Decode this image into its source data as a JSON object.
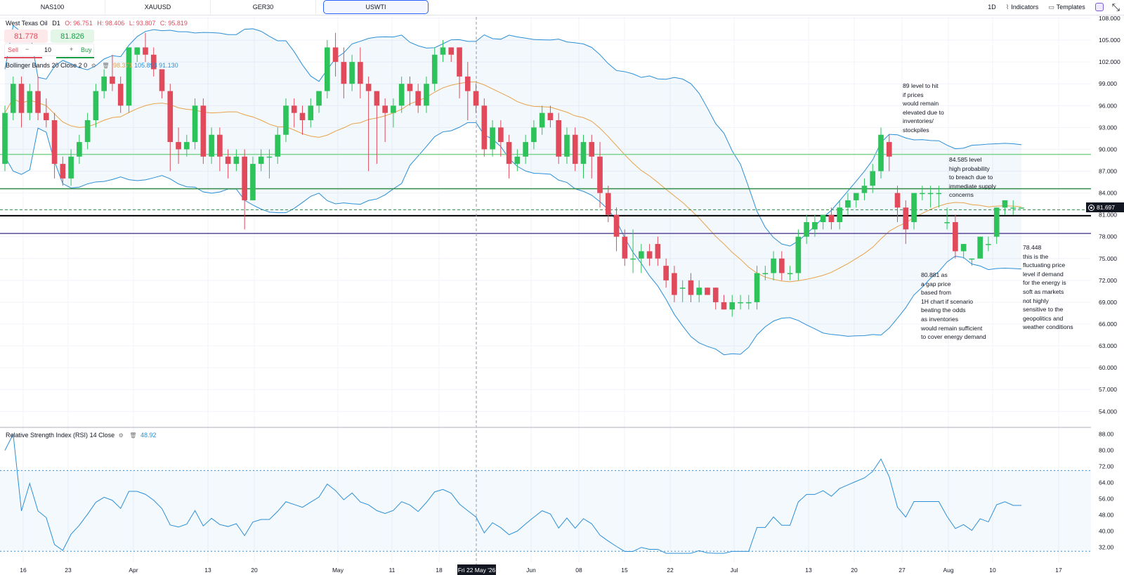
{
  "tabs": [
    {
      "label": "NAS100",
      "active": false
    },
    {
      "label": "XAUUSD",
      "active": false
    },
    {
      "label": "GER30",
      "active": false
    },
    {
      "label": "USWTI",
      "active": true
    }
  ],
  "toolbar": {
    "interval": "1D",
    "indicators_label": "Indicators",
    "templates_label": "Templates"
  },
  "legend": {
    "symbol": "West Texas Oil",
    "timeframe": "D1",
    "open": "O: 96.751",
    "high": "H: 98.406",
    "low": "L: 93.807",
    "close": "C: 95.819"
  },
  "trade": {
    "sell_price": "81.778",
    "buy_price": "81.826",
    "sell_label": "Sell",
    "buy_label": "Buy",
    "quantity": "10",
    "minus": "−",
    "plus": "+"
  },
  "bollinger": {
    "name": "Bollinger Bands",
    "length": "20",
    "source": "Close",
    "mult": "2",
    "offset": "0",
    "basis": "98.371",
    "upper": "105.898",
    "lower": "91.130"
  },
  "rsi_legend": {
    "name": "Relative Strength Index (RSI)",
    "length": "14",
    "source": "Close",
    "value": "48.92"
  },
  "annotations": [
    {
      "id": "note-89",
      "text": "89 level to hit\nif prices\nwould remain\nelevated due to\ninventories/\nstockpiles"
    },
    {
      "id": "note-84",
      "text": "84.585 level\nhigh probability\nto breach due to\nimmediate supply\nconcerns"
    },
    {
      "id": "note-80",
      "text": "80.881 as\na gap price\nbased from\n1H chart if scenario\nbeating the odds\nas inventories\nwould remain sufficient\nto cover energy demand"
    },
    {
      "id": "note-78",
      "text": "78.448\nthis is the\nfluctuating price\nlevel if demand\nfor the energy is\nsoft as markets\nnot highly\nsensitive to the\ngeopolitics and\nweather conditions"
    }
  ],
  "price_tag": "81.697",
  "crosshair_date": "Fri 22 May '26",
  "colors": {
    "up": "#2ec25a",
    "down": "#e04a5a",
    "band": "#2b8fd6",
    "basis": "#e8a24a",
    "level_green": "#7ad38c",
    "level_dark_green": "#2f8a48",
    "level_black": "#000000",
    "level_purple": "#5b4a9a"
  },
  "chart_data": {
    "type": "candlestick",
    "symbol": "West Texas Oil",
    "price_axis": {
      "range": [
        52,
        108
      ],
      "ticks": [
        "108.000",
        "105.000",
        "102.000",
        "99.000",
        "96.000",
        "93.000",
        "90.000",
        "87.000",
        "84.000",
        "81.000",
        "78.000",
        "75.000",
        "72.000",
        "69.000",
        "66.000",
        "63.000",
        "60.000",
        "57.000",
        "54.000"
      ]
    },
    "time_axis": {
      "labels": [
        "16",
        "23",
        "Apr",
        "13",
        "20",
        "May",
        "11",
        "18",
        "Jun",
        "08",
        "15",
        "22",
        "Jul",
        "13",
        "20",
        "27",
        "Aug",
        "10",
        "17"
      ]
    },
    "horizontal_levels": [
      89.3,
      84.585,
      80.881,
      78.448
    ],
    "current_price": 81.697,
    "candles": [
      [
        88,
        95,
        87,
        96
      ],
      [
        95,
        99,
        94,
        100
      ],
      [
        99,
        95,
        93,
        100
      ],
      [
        95,
        98,
        94,
        99
      ],
      [
        98,
        95,
        94,
        100
      ],
      [
        95,
        94,
        93,
        97
      ],
      [
        94,
        88,
        86,
        95
      ],
      [
        88,
        86,
        85,
        89
      ],
      [
        86,
        89,
        85,
        90
      ],
      [
        89,
        91,
        88,
        92
      ],
      [
        91,
        94,
        90,
        95
      ],
      [
        94,
        98,
        93,
        99
      ],
      [
        98,
        100,
        97,
        101
      ],
      [
        100,
        99,
        98,
        103
      ],
      [
        99,
        96,
        95,
        100
      ],
      [
        96,
        104,
        95,
        104
      ],
      [
        103,
        104,
        102,
        104
      ],
      [
        104,
        103,
        102,
        106
      ],
      [
        103,
        101,
        100,
        104
      ],
      [
        101,
        98,
        97,
        101
      ],
      [
        98,
        91,
        87,
        99
      ],
      [
        91,
        90,
        88,
        93
      ],
      [
        90,
        91,
        89,
        92
      ],
      [
        91,
        96,
        90,
        97
      ],
      [
        96,
        89,
        88,
        97
      ],
      [
        89,
        92,
        88,
        93
      ],
      [
        92,
        89,
        87,
        93
      ],
      [
        89,
        88,
        86,
        90
      ],
      [
        88,
        89,
        87,
        90
      ],
      [
        89,
        83,
        79,
        90
      ],
      [
        83,
        88,
        83,
        89
      ],
      [
        88,
        89,
        87,
        90
      ],
      [
        89,
        89,
        86,
        90
      ],
      [
        89,
        92,
        88,
        93
      ],
      [
        92,
        96,
        91,
        97
      ],
      [
        96,
        95,
        93,
        97
      ],
      [
        95,
        94,
        92,
        96
      ],
      [
        94,
        96,
        93,
        97
      ],
      [
        96,
        98,
        95,
        98
      ],
      [
        98,
        104,
        97,
        105
      ],
      [
        104,
        102,
        100,
        106
      ],
      [
        102,
        99,
        97,
        104
      ],
      [
        99,
        102,
        98,
        103
      ],
      [
        102,
        99,
        97,
        104
      ],
      [
        99,
        98,
        87,
        100
      ],
      [
        98,
        96,
        88,
        98
      ],
      [
        96,
        95,
        91,
        97
      ],
      [
        95,
        96,
        93,
        97
      ],
      [
        96,
        99,
        95,
        100
      ],
      [
        99,
        98,
        96,
        100
      ],
      [
        98,
        96,
        95,
        99
      ],
      [
        96,
        99,
        95,
        100
      ],
      [
        99,
        103,
        98,
        104
      ],
      [
        103,
        104,
        102,
        105
      ],
      [
        104,
        103,
        102,
        104
      ],
      [
        104,
        100,
        97,
        104
      ],
      [
        100,
        98,
        94,
        102
      ],
      [
        98,
        96,
        95,
        99
      ],
      [
        96,
        90,
        89,
        97
      ],
      [
        90,
        93,
        89,
        94
      ],
      [
        93,
        91,
        89,
        94
      ],
      [
        91,
        88,
        86,
        92
      ],
      [
        88,
        89,
        87,
        90
      ],
      [
        89,
        91,
        88,
        92
      ],
      [
        91,
        93,
        90,
        94
      ],
      [
        93,
        95,
        92,
        96
      ],
      [
        95,
        94,
        93,
        96
      ],
      [
        94,
        89,
        88,
        95
      ],
      [
        89,
        92,
        88,
        93
      ],
      [
        92,
        88,
        87,
        93
      ],
      [
        88,
        91,
        86,
        92
      ],
      [
        91,
        89,
        86,
        92
      ],
      [
        89,
        84,
        82,
        91
      ],
      [
        84,
        81,
        80,
        85
      ],
      [
        81,
        78,
        76,
        82
      ],
      [
        78,
        75,
        74,
        79
      ],
      [
        75,
        75,
        73,
        79
      ],
      [
        75,
        76,
        73,
        77
      ],
      [
        76,
        75,
        74,
        77
      ],
      [
        77,
        75,
        74,
        78
      ],
      [
        74,
        72,
        71,
        75
      ],
      [
        73,
        70,
        69,
        74
      ],
      [
        71,
        71,
        69,
        72
      ],
      [
        72,
        70,
        69,
        73
      ],
      [
        70,
        71,
        69,
        72
      ],
      [
        71,
        70,
        70,
        71
      ],
      [
        71,
        69,
        68,
        71
      ],
      [
        69,
        68,
        68,
        70
      ],
      [
        68,
        69,
        67,
        70
      ],
      [
        69,
        69,
        68,
        70
      ],
      [
        69,
        69,
        68,
        70
      ],
      [
        69,
        73,
        68,
        74
      ],
      [
        73,
        73,
        72,
        74
      ],
      [
        73,
        75,
        72,
        76
      ],
      [
        75,
        73,
        72,
        76
      ],
      [
        73,
        73,
        72,
        74
      ],
      [
        73,
        78,
        72,
        79
      ],
      [
        78,
        80,
        77,
        81
      ],
      [
        79,
        80,
        78,
        81
      ],
      [
        80,
        81,
        79,
        81
      ],
      [
        81,
        80,
        79,
        82
      ],
      [
        80,
        82,
        79,
        83
      ],
      [
        82,
        83,
        81,
        84
      ],
      [
        83,
        84,
        82,
        84
      ],
      [
        84,
        85,
        83,
        86
      ],
      [
        85,
        87,
        84,
        88
      ],
      [
        87,
        92,
        86,
        93
      ],
      [
        91,
        89,
        87,
        92
      ],
      [
        84,
        82,
        80,
        85
      ],
      [
        82,
        79,
        77,
        83
      ],
      [
        80,
        84,
        79,
        84
      ],
      [
        84,
        84,
        83,
        85
      ],
      [
        84,
        84,
        82,
        85
      ],
      [
        84,
        84,
        82,
        85
      ],
      [
        80,
        80,
        79,
        82
      ],
      [
        80,
        76,
        75,
        81
      ],
      [
        76,
        77,
        75,
        77
      ],
      [
        75,
        75,
        74,
        75
      ],
      [
        75,
        78,
        75,
        78
      ],
      [
        77,
        77,
        76,
        78
      ],
      [
        78,
        82,
        77,
        82
      ],
      [
        82,
        83,
        81,
        83
      ],
      [
        82,
        82,
        81,
        83
      ],
      [
        82,
        82,
        82,
        82
      ]
    ],
    "rsi": {
      "range": [
        28,
        90
      ],
      "overbought": 70,
      "oversold": 30,
      "ticks": [
        "88.00",
        "80.00",
        "72.00",
        "64.00",
        "56.00",
        "48.00",
        "40.00",
        "32.00"
      ]
    }
  }
}
